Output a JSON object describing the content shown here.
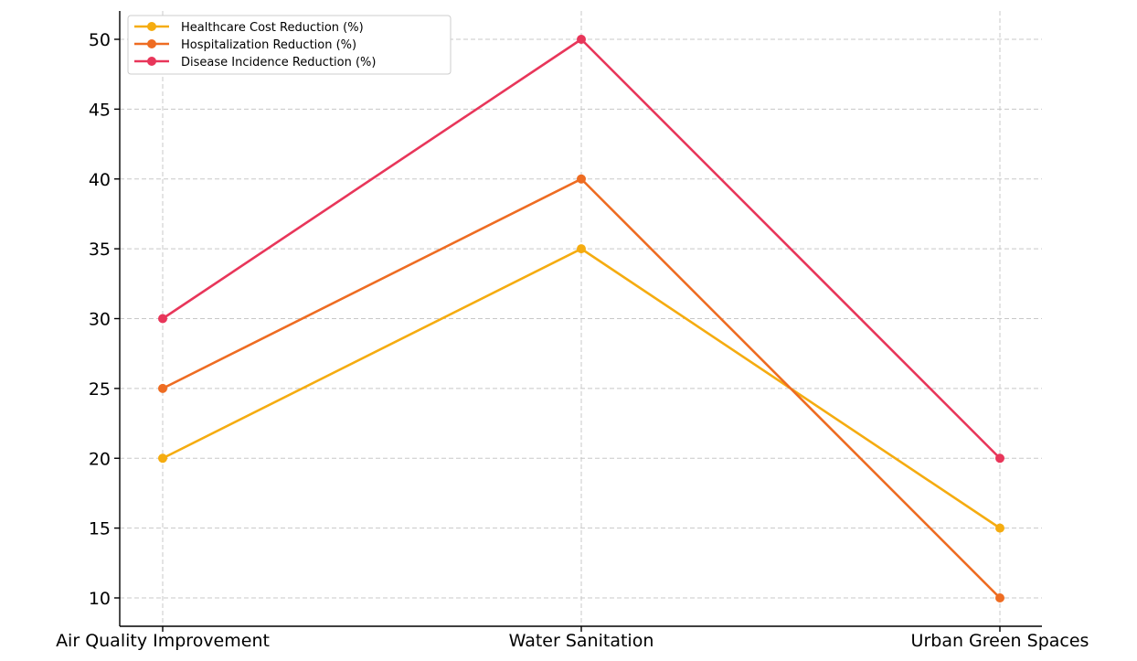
{
  "chart_data": {
    "type": "line",
    "title": "",
    "xlabel": "",
    "ylabel": "",
    "categories": [
      "Air Quality Improvement",
      "Water Sanitation",
      "Urban Green Spaces"
    ],
    "ylim": [
      8,
      52
    ],
    "yticks": [
      10,
      15,
      20,
      25,
      30,
      35,
      40,
      45,
      50
    ],
    "grid": true,
    "legend_position": "top-left",
    "series": [
      {
        "name": "Healthcare Cost Reduction (%)",
        "color": "#f5ac10",
        "values": [
          20,
          35,
          15
        ]
      },
      {
        "name": "Hospitalization Reduction (%)",
        "color": "#ee6c22",
        "values": [
          25,
          40,
          10
        ]
      },
      {
        "name": "Disease Incidence Reduction (%)",
        "color": "#e8365a",
        "values": [
          30,
          50,
          20
        ]
      }
    ]
  }
}
